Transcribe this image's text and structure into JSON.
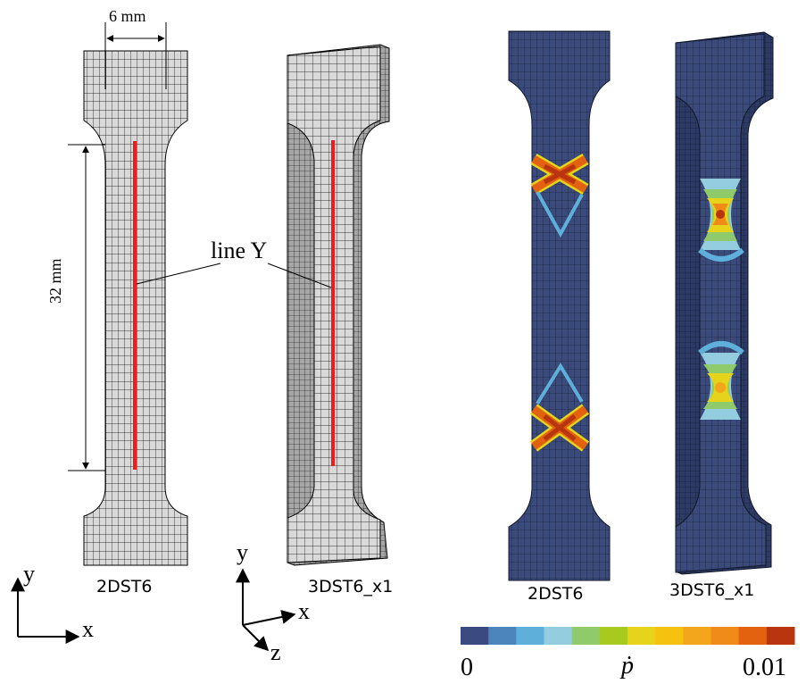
{
  "dimensions": {
    "width_label": "6 mm",
    "length_label": "32 mm"
  },
  "line_label": "line Y",
  "specimens": [
    {
      "label": "2DST6"
    },
    {
      "label": "3DST6_x1"
    },
    {
      "label": "2DST6"
    },
    {
      "label": "3DST6_x1"
    }
  ],
  "axes2d": {
    "x": "x",
    "y": "y"
  },
  "axes3d": {
    "x": "x",
    "y": "y",
    "z": "z"
  },
  "colorbar": {
    "min_label": "0",
    "max_label": "0.01",
    "symbol": "ṗ",
    "colors": [
      "#3b4a80",
      "#4b85bb",
      "#5fafdb",
      "#95cde0",
      "#8fcb6b",
      "#a8c91f",
      "#e5d419",
      "#f4c20f",
      "#f3a51c",
      "#f08a18",
      "#e2620f",
      "#b8350f"
    ]
  },
  "colors": {
    "mesh_fill": "#d9d9d9",
    "mesh_line": "#000000",
    "line_y": "#ee1c1c",
    "field_bg": "#3a4a7a"
  }
}
